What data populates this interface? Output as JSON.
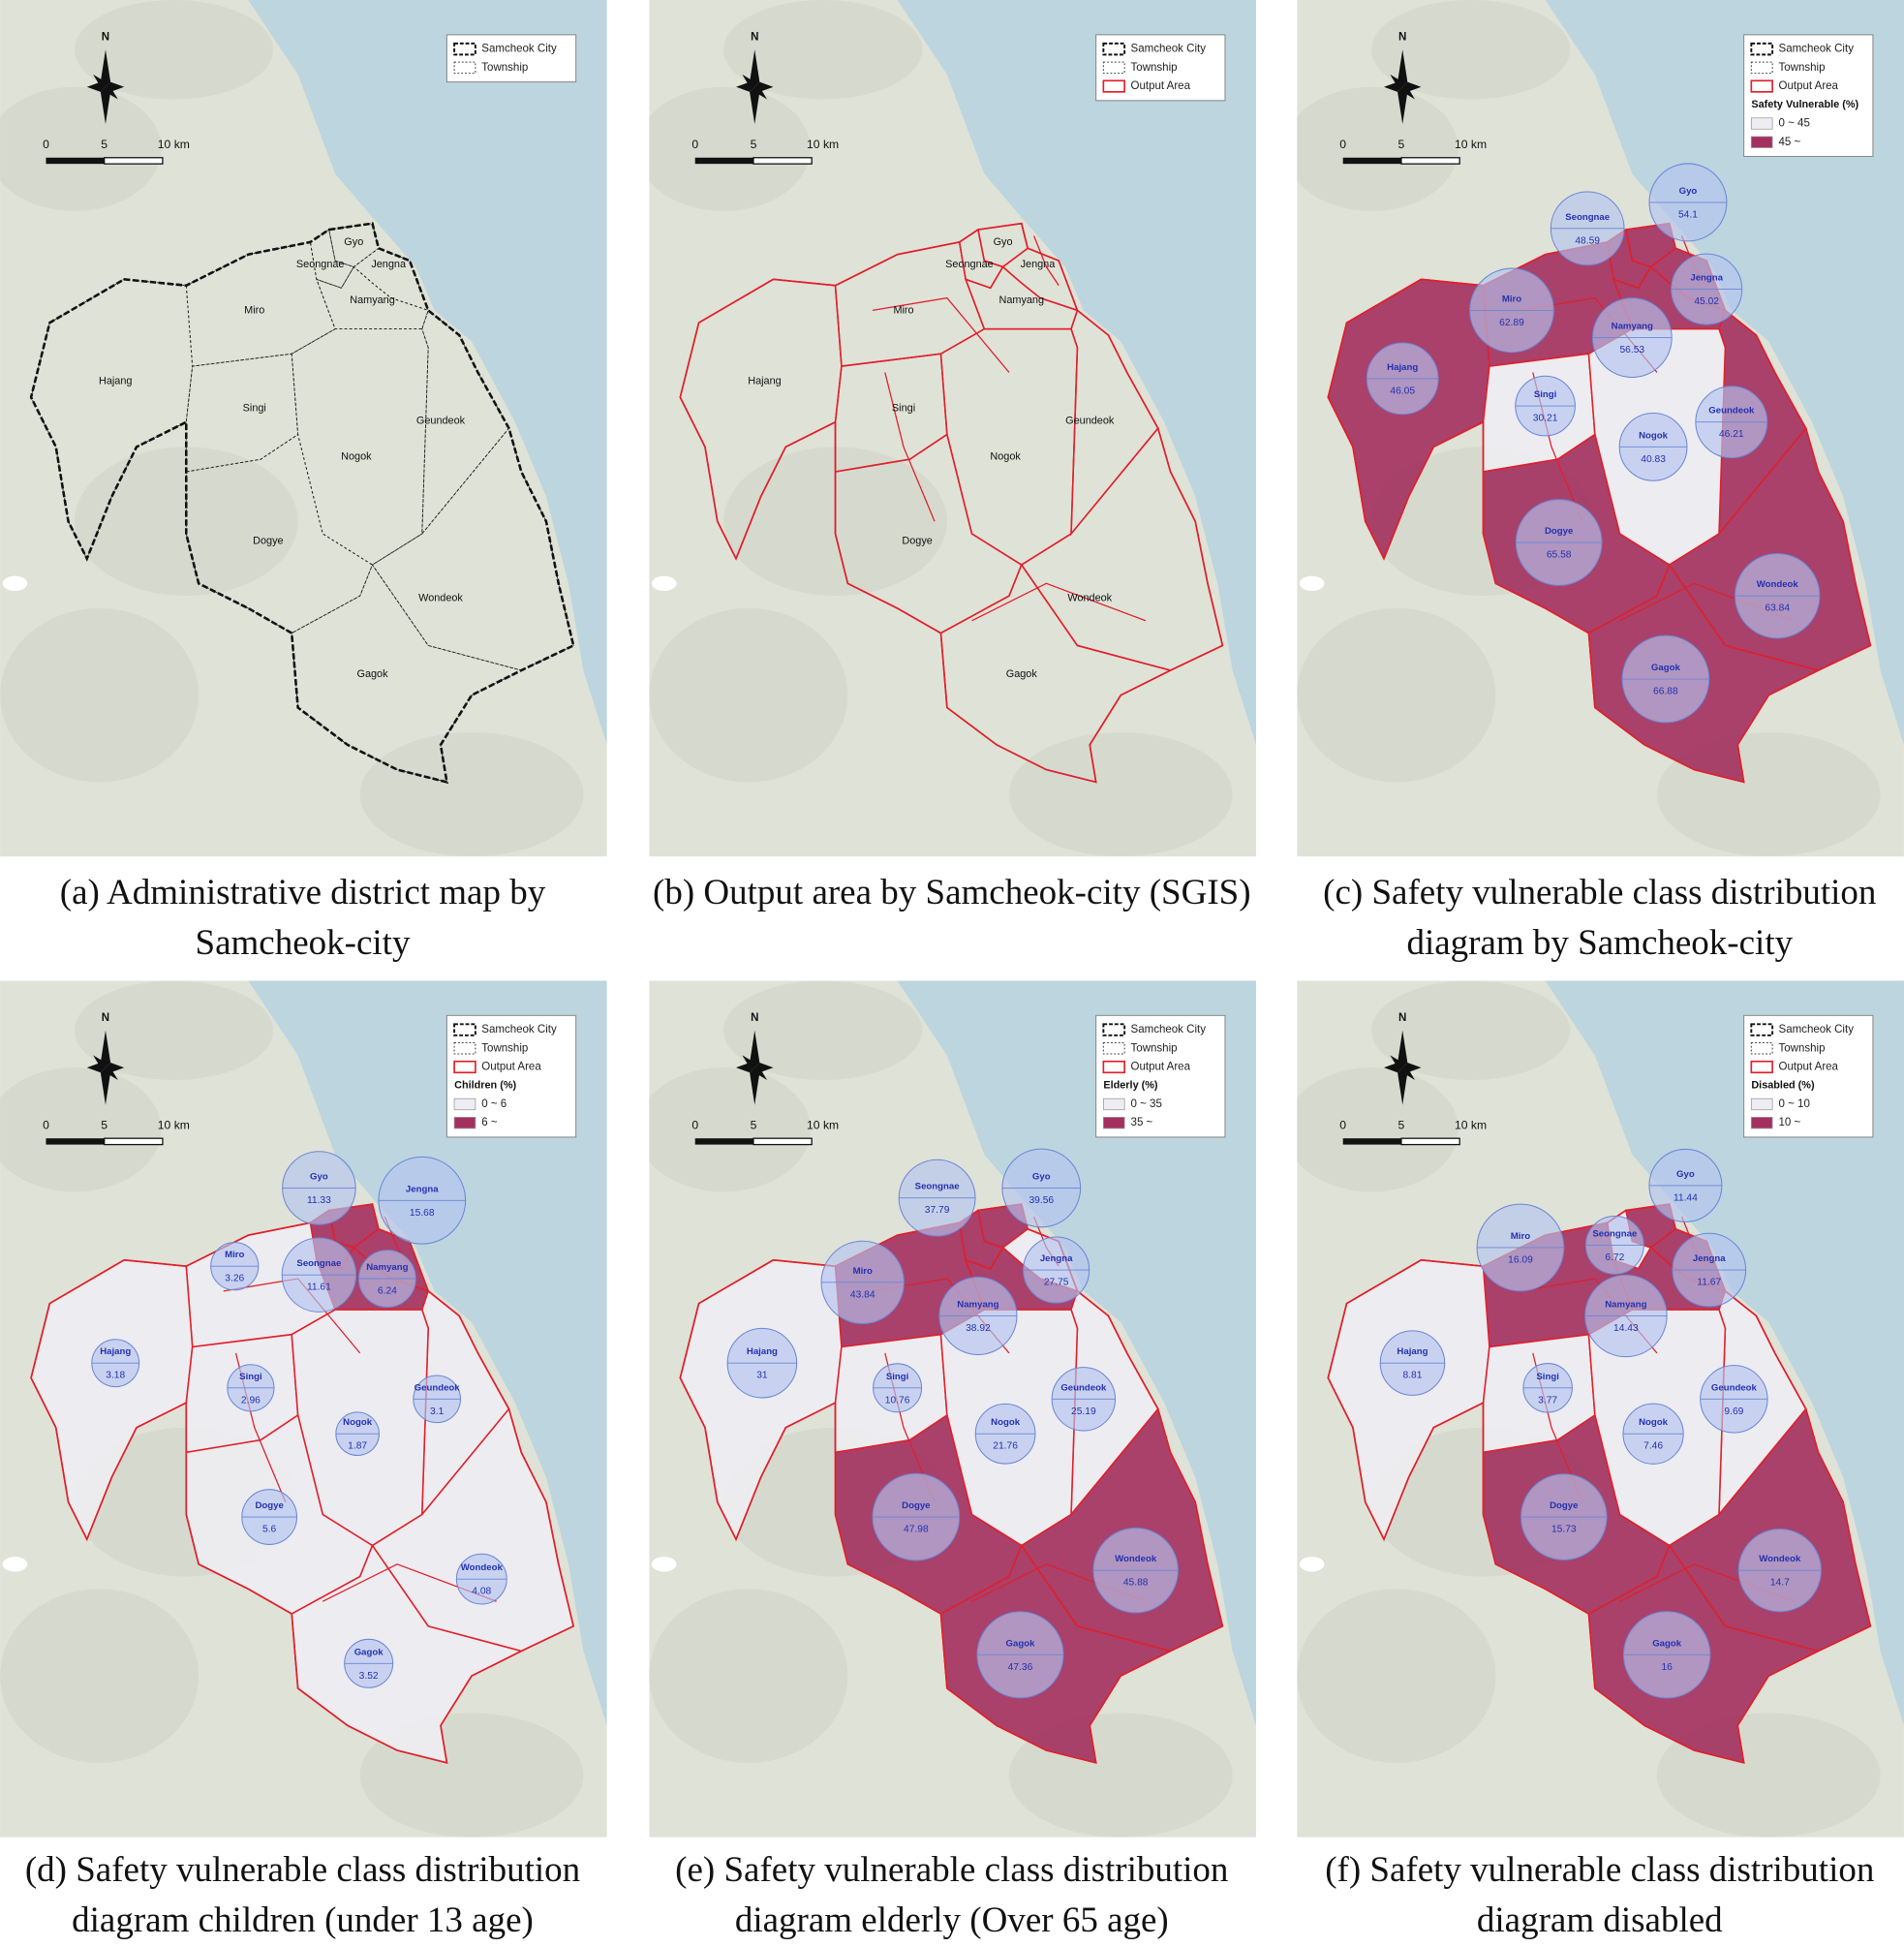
{
  "north": "N",
  "scale_labels": [
    "0",
    "5",
    "10 km"
  ],
  "district_names": [
    "Gyo",
    "Seongnae",
    "Jengna",
    "Namyang",
    "Miro",
    "Hajang",
    "Singi",
    "Geundeok",
    "Nogok",
    "Dogye",
    "Wondeok",
    "Gagok"
  ],
  "panels": [
    {
      "caption": "(a) Administrative district map by Samcheok-city",
      "legend": {
        "items": [
          "Samcheok City",
          "Township"
        ]
      }
    },
    {
      "caption": "(b) Output area by Samcheok-city (SGIS)",
      "legend": {
        "items": [
          "Samcheok City",
          "Township",
          "Output Area"
        ]
      }
    },
    {
      "caption": "(c) Safety vulnerable class distribution diagram by Samcheok-city",
      "legend": {
        "items": [
          "Samcheok City",
          "Township",
          "Output Area"
        ],
        "title": "Safety Vulnerable (%)",
        "classes": [
          {
            "label": "0 ~ 45",
            "color": "#eeedf3"
          },
          {
            "label": "45 ~",
            "color": "#a3305f"
          }
        ]
      },
      "values": [
        54.1,
        48.59,
        45.02,
        56.53,
        62.89,
        46.05,
        30.21,
        46.21,
        40.83,
        65.58,
        63.84,
        66.88
      ],
      "fills": [
        "#a3305f",
        "#a3305f",
        "#a3305f",
        "#a3305f",
        "#a3305f",
        "#a3305f",
        "#eeedf3",
        "#a3305f",
        "#eeedf3",
        "#a3305f",
        "#a3305f",
        "#a3305f"
      ]
    },
    {
      "caption": "(d) Safety vulnerable class distribution diagram children (under 13 age)",
      "legend": {
        "items": [
          "Samcheok City",
          "Township",
          "Output Area"
        ],
        "title": "Children (%)",
        "classes": [
          {
            "label": "0 ~ 6",
            "color": "#eeedf3"
          },
          {
            "label": "6 ~",
            "color": "#a3305f"
          }
        ]
      },
      "values": [
        11.33,
        11.61,
        15.68,
        6.24,
        3.26,
        3.18,
        2.96,
        3.1,
        1.87,
        5.6,
        4.08,
        3.52
      ],
      "fills": [
        "#a3305f",
        "#a3305f",
        "#a3305f",
        "#a3305f",
        "#eeedf3",
        "#eeedf3",
        "#eeedf3",
        "#eeedf3",
        "#eeedf3",
        "#eeedf3",
        "#eeedf3",
        "#eeedf3"
      ]
    },
    {
      "caption": "(e) Safety vulnerable class distribution diagram elderly (Over 65 age)",
      "legend": {
        "items": [
          "Samcheok City",
          "Township",
          "Output Area"
        ],
        "title": "Elderly (%)",
        "classes": [
          {
            "label": "0 ~ 35",
            "color": "#eeedf3"
          },
          {
            "label": "35 ~",
            "color": "#a3305f"
          }
        ]
      },
      "values": [
        39.56,
        37.79,
        27.75,
        38.92,
        43.84,
        31,
        10.76,
        25.19,
        21.76,
        47.98,
        45.88,
        47.36
      ],
      "fills": [
        "#a3305f",
        "#a3305f",
        "#eeedf3",
        "#a3305f",
        "#a3305f",
        "#eeedf3",
        "#eeedf3",
        "#eeedf3",
        "#eeedf3",
        "#a3305f",
        "#a3305f",
        "#a3305f"
      ]
    },
    {
      "caption": "(f) Safety vulnerable class distribution diagram disabled",
      "legend": {
        "items": [
          "Samcheok City",
          "Township",
          "Output Area"
        ],
        "title": "Disabled (%)",
        "classes": [
          {
            "label": "0 ~ 10",
            "color": "#eeedf3"
          },
          {
            "label": "10 ~",
            "color": "#a3305f"
          }
        ]
      },
      "values": [
        11.44,
        6.72,
        11.67,
        14.43,
        16.09,
        8.81,
        3.77,
        9.69,
        7.46,
        15.73,
        14.7,
        16
      ],
      "fills": [
        "#a3305f",
        "#eeedf3",
        "#a3305f",
        "#a3305f",
        "#a3305f",
        "#eeedf3",
        "#eeedf3",
        "#eeedf3",
        "#eeedf3",
        "#a3305f",
        "#a3305f",
        "#a3305f"
      ]
    }
  ]
}
